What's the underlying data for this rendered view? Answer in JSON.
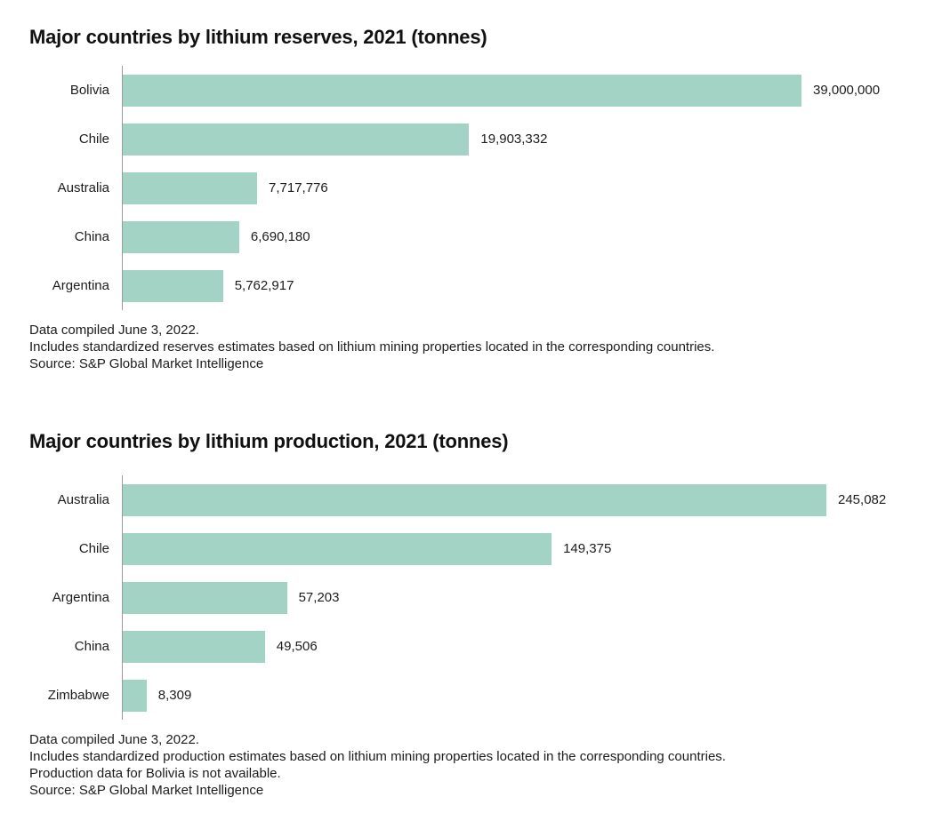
{
  "colors": {
    "bar": "#a3d3c4",
    "axis": "#9b9b9b",
    "title_text": "#111111",
    "body_text": "#1c1c1c",
    "background": "#ffffff"
  },
  "chart_data": [
    {
      "type": "bar",
      "orientation": "horizontal",
      "title": "Major countries by lithium reserves, 2021 (tonnes)",
      "categories": [
        "Bolivia",
        "Chile",
        "Australia",
        "China",
        "Argentina"
      ],
      "values": [
        39000000,
        19903332,
        7717776,
        6690180,
        5762917
      ],
      "value_labels": [
        "39,000,000",
        "19,903,332",
        "7,717,776",
        "6,690,180",
        "5,762,917"
      ],
      "xlim": [
        0,
        39000000
      ],
      "grid": false,
      "legend": false,
      "value_label_position": "end-of-bar",
      "notes": [
        "Data compiled June 3, 2022.",
        "Includes standardized reserves estimates based on lithium mining properties located in the corresponding countries.",
        "Source: S&P Global Market Intelligence"
      ]
    },
    {
      "type": "bar",
      "orientation": "horizontal",
      "title": "Major countries by lithium production, 2021 (tonnes)",
      "categories": [
        "Australia",
        "Chile",
        "Argentina",
        "China",
        "Zimbabwe"
      ],
      "values": [
        245082,
        149375,
        57203,
        49506,
        8309
      ],
      "value_labels": [
        "245,082",
        "149,375",
        "57,203",
        "49,506",
        "8,309"
      ],
      "xlim": [
        0,
        245082
      ],
      "grid": false,
      "legend": false,
      "value_label_position": "end-of-bar",
      "notes": [
        "Data compiled June 3, 2022.",
        "Includes standardized production estimates based on lithium mining properties located in the corresponding countries.",
        "Production data for Bolivia is not available.",
        "Source: S&P Global Market Intelligence"
      ]
    }
  ]
}
